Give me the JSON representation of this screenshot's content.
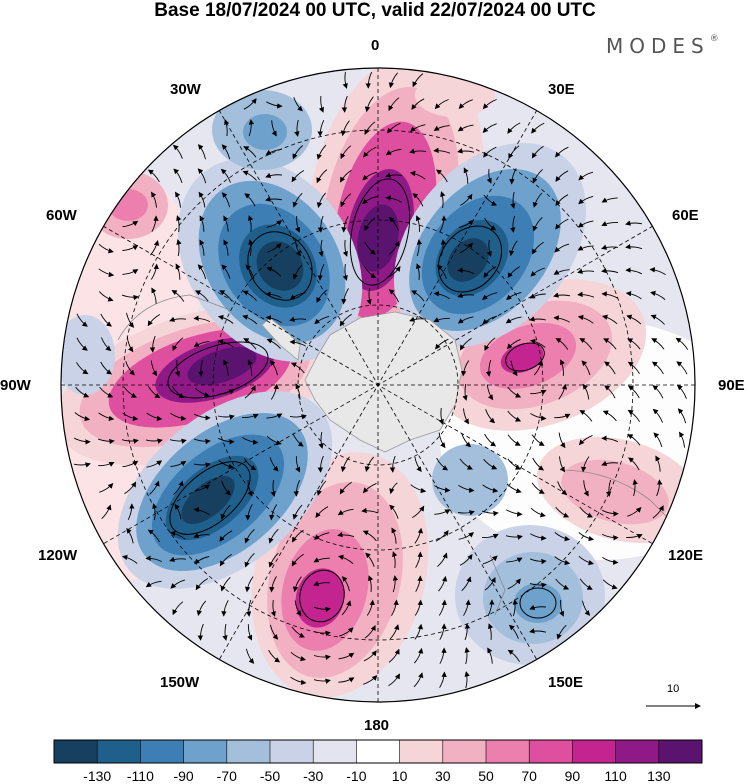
{
  "title": "Base 18/07/2024 00 UTC, valid 22/07/2024 00 UTC",
  "logo": "MODES",
  "logo_mark": "®",
  "longitude_labels": {
    "0": "0",
    "30E": "30E",
    "60E": "60E",
    "90E": "90E",
    "120E": "120E",
    "150E": "150E",
    "180": "180",
    "150W": "150W",
    "120W": "120W",
    "90W": "90W",
    "60W": "60W",
    "30W": "30W"
  },
  "vector_scale_label": "10",
  "colorbar": {
    "labels": [
      "-130",
      "-110",
      "-90",
      "-70",
      "-50",
      "-30",
      "-10",
      "10",
      "30",
      "50",
      "70",
      "90",
      "110",
      "130"
    ],
    "colors": [
      "#173f5f",
      "#1f5f8b",
      "#3d7fb5",
      "#6ea2cc",
      "#a3bfdc",
      "#c9d2e6",
      "#e4e4f0",
      "#ffffff",
      "#f6d5d9",
      "#f2b1c3",
      "#ec7fae",
      "#df4f9f",
      "#c3248f",
      "#8f1a87",
      "#5a136f"
    ]
  },
  "colors": {
    "land": "#e8e8e8",
    "positive_strong": "#7a1a8a",
    "negative_strong": "#1f4f78"
  }
}
